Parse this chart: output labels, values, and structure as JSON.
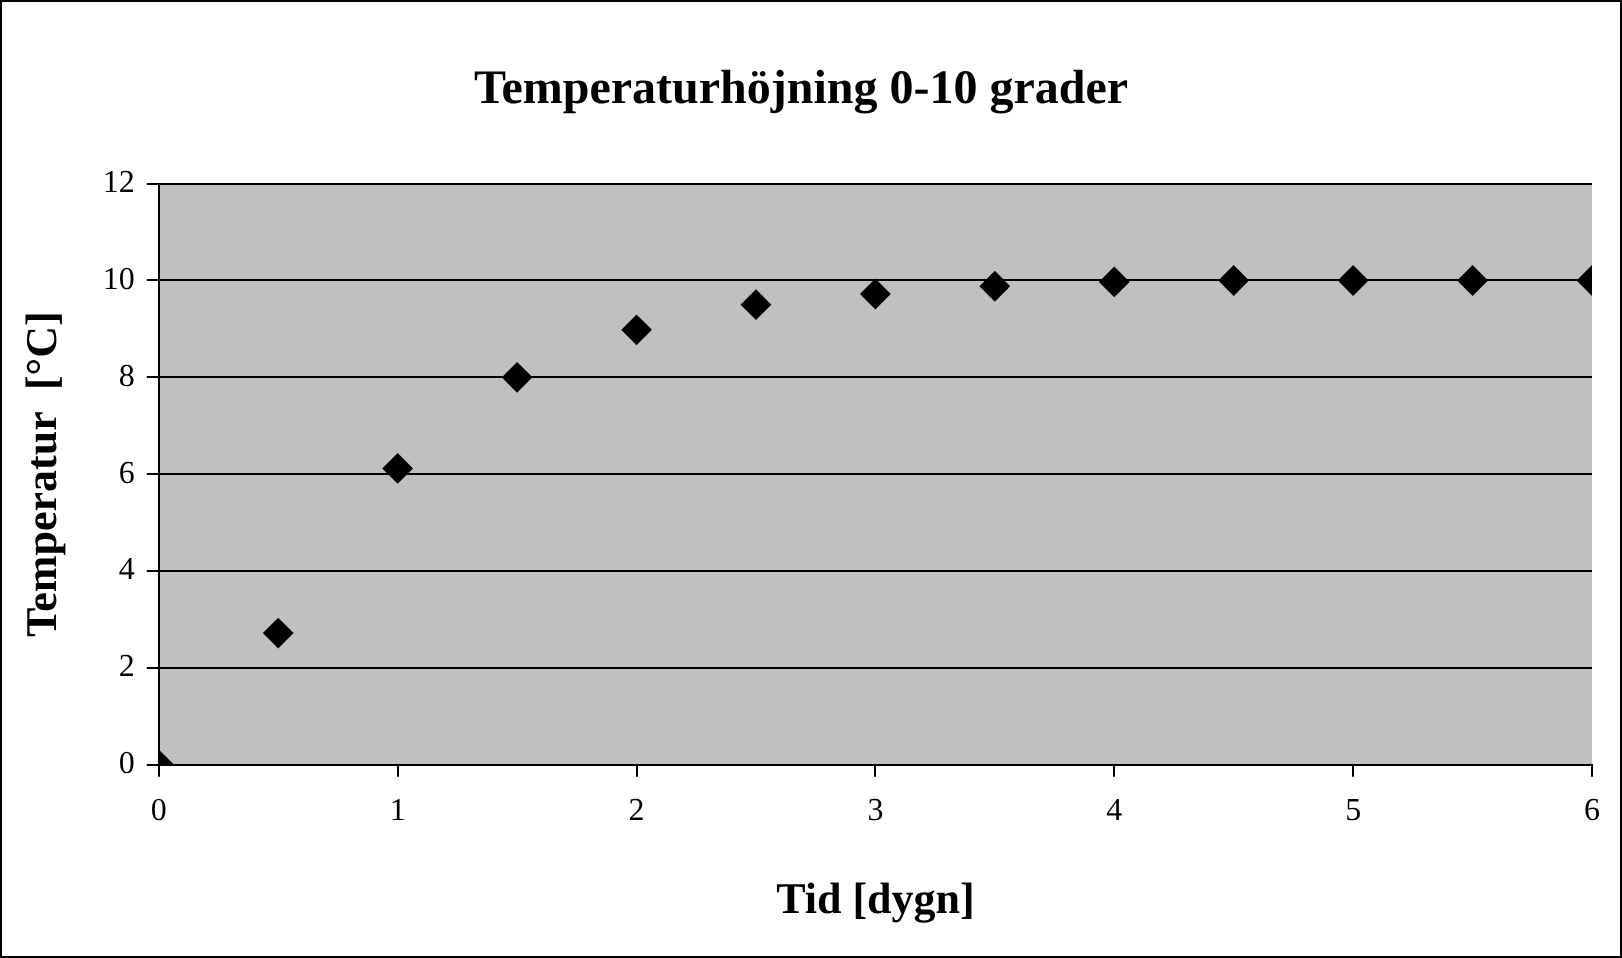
{
  "chart_data": {
    "type": "scatter",
    "title": "Temperaturhöjning 0-10 grader",
    "xlabel": "Tid [dygn]",
    "ylabel": "Temperatur  [°C]",
    "x": [
      0,
      0.5,
      1,
      1.5,
      2,
      2.5,
      3,
      3.5,
      4,
      4.5,
      5,
      5.5,
      6
    ],
    "series": [
      {
        "color": "#000000",
        "values": [
          0,
          2.72,
          6.12,
          8.0,
          8.98,
          9.5,
          9.72,
          9.88,
          9.97,
          10,
          10,
          10,
          10
        ]
      }
    ],
    "xlim": [
      0,
      6
    ],
    "xticks": [
      0,
      1,
      2,
      3,
      4,
      5,
      6
    ],
    "ylim": [
      0,
      12
    ],
    "yticks": [
      0,
      2,
      4,
      6,
      8,
      10,
      12
    ],
    "grid": "y",
    "marker": "diamond",
    "legend": false
  }
}
